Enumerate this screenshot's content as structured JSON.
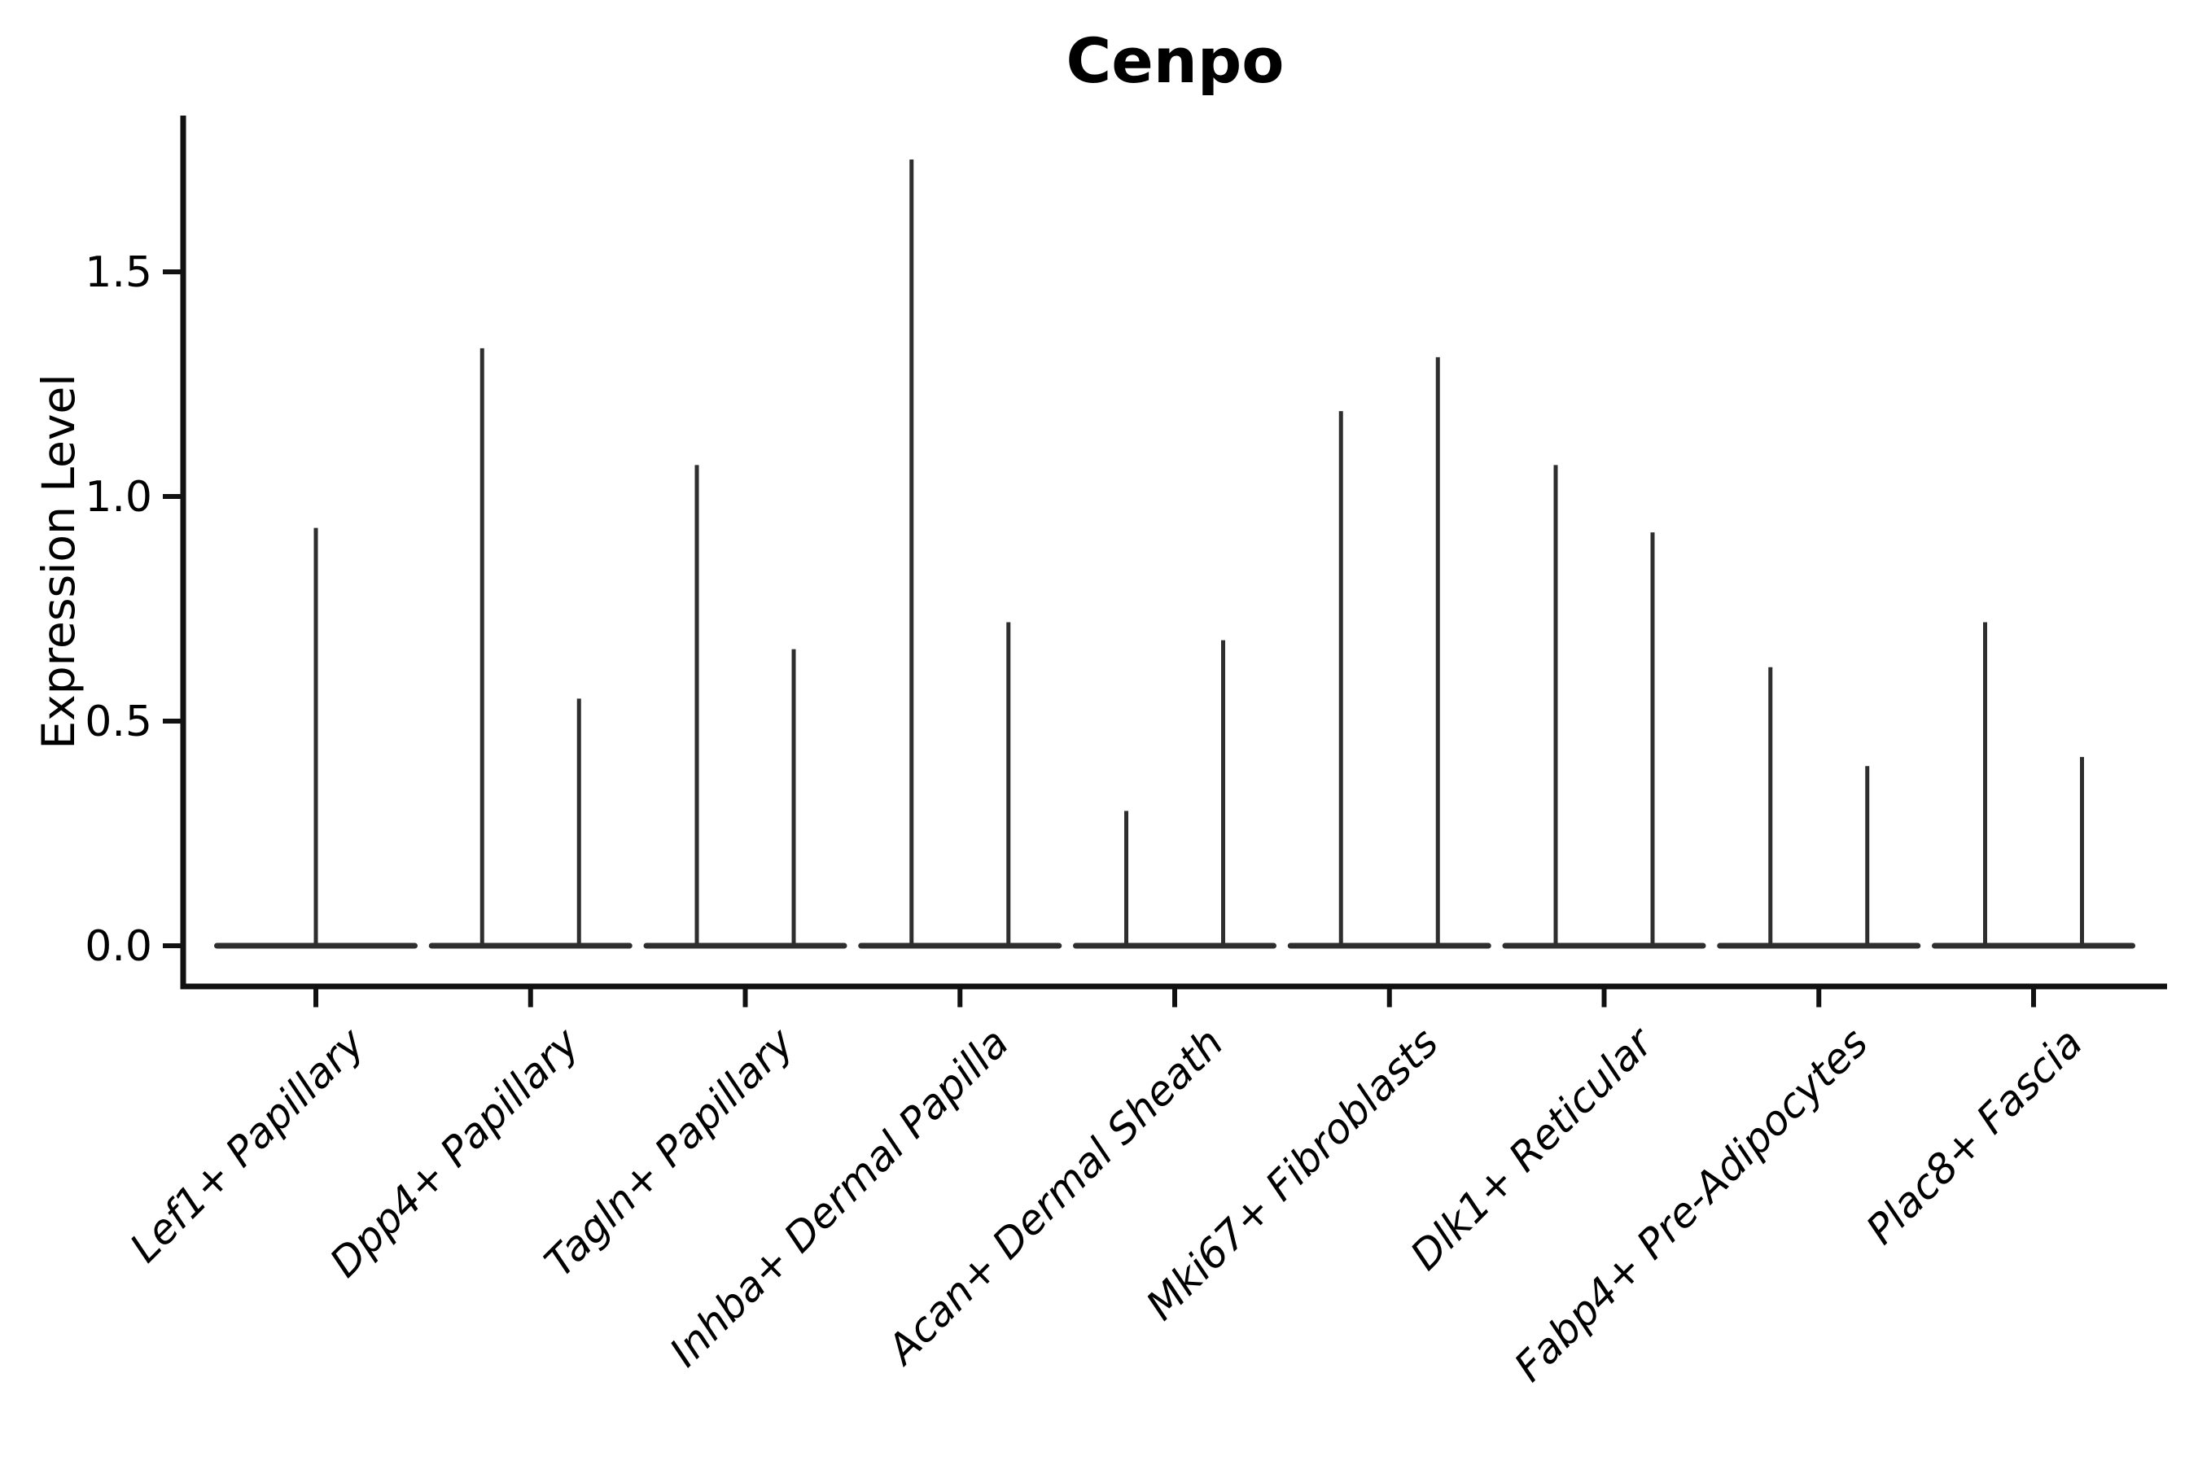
{
  "chart_data": {
    "type": "violin",
    "title": "Cenpo",
    "ylabel": "Expression Level",
    "xlabel": "",
    "yticks": [
      0,
      0.5,
      1.0,
      1.5
    ],
    "ylim": [
      -0.09,
      1.85
    ],
    "grid": false,
    "legend": null,
    "categories": [
      "Lef1+ Papillary",
      "Dpp4+ Papillary",
      "Tagln+ Papillary",
      "Inhba+ Dermal Papilla",
      "Acan+ Dermal Sheath",
      "Mki67+ Fibroblasts",
      "Dlk1+ Reticular",
      "Fabp4+ Pre-Adipocytes",
      "Plac8+ Fascia"
    ],
    "series": [
      {
        "category": "Lef1+ Papillary",
        "peaks": [
          0.93
        ]
      },
      {
        "category": "Dpp4+ Papillary",
        "peaks": [
          1.33,
          0.55
        ]
      },
      {
        "category": "Tagln+ Papillary",
        "peaks": [
          1.07,
          0.66
        ]
      },
      {
        "category": "Inhba+ Dermal Papilla",
        "peaks": [
          1.75,
          0.72
        ]
      },
      {
        "category": "Acan+ Dermal Sheath",
        "peaks": [
          0.3,
          0.68
        ]
      },
      {
        "category": "Mki67+ Fibroblasts",
        "peaks": [
          1.19,
          1.31
        ]
      },
      {
        "category": "Dlk1+ Reticular",
        "peaks": [
          1.07,
          0.92
        ]
      },
      {
        "category": "Fabp4+ Pre-Adipocytes",
        "peaks": [
          0.62,
          0.4
        ]
      },
      {
        "category": "Plac8+ Fascia",
        "peaks": [
          0.72,
          0.42
        ]
      }
    ],
    "style": {
      "violin_color": "#2e2e2e",
      "axis_color": "#111111",
      "text_color": "#000000",
      "background": "#ffffff"
    }
  }
}
